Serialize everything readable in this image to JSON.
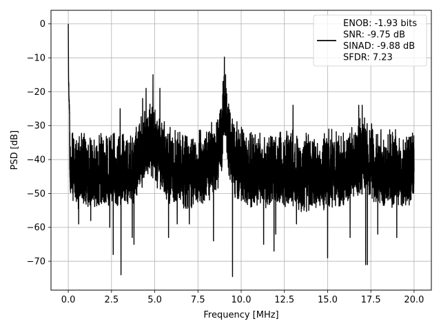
{
  "chart_data": {
    "type": "line",
    "title": "",
    "xlabel": "Frequency [MHz]",
    "ylabel": "PSD [dB]",
    "xlim": [
      -1.0,
      21.0
    ],
    "ylim": [
      -78.5,
      4.0
    ],
    "xticks": [
      0.0,
      2.5,
      5.0,
      7.5,
      10.0,
      12.5,
      15.0,
      17.5,
      20.0
    ],
    "xtick_labels": [
      "0.0",
      "2.5",
      "5.0",
      "7.5",
      "10.0",
      "12.5",
      "15.0",
      "17.5",
      "20.0"
    ],
    "yticks": [
      0,
      -10,
      -20,
      -30,
      -40,
      -50,
      -60,
      -70
    ],
    "ytick_labels": [
      "0",
      "−10",
      "−20",
      "−30",
      "−40",
      "−50",
      "−60",
      "−70"
    ],
    "grid": true,
    "legend": {
      "placement": "top-right",
      "entries": [
        "ENOB: -1.93 bits",
        "SNR: -9.75 dB",
        "SINAD: -9.88 dB",
        "SFDR: 7.23"
      ]
    },
    "series": [
      {
        "color": "#000000",
        "description_points": {
          "x": [
            0.0,
            0.02,
            0.05,
            0.1,
            0.3,
            0.6,
            1.0,
            2.0,
            3.0,
            3.8,
            4.3,
            4.6,
            4.9,
            5.2,
            6.0,
            7.0,
            8.0,
            8.6,
            8.9,
            9.03,
            9.2,
            9.6,
            10.5,
            11.5,
            12.5,
            14.0,
            15.0,
            16.0,
            16.8,
            17.2,
            17.5,
            18.0,
            19.0,
            20.0
          ],
          "y": [
            0.0,
            -15.0,
            -20.0,
            -30.0,
            -33.0,
            -33.0,
            -33.0,
            -33.0,
            -33.0,
            -31.0,
            -27.0,
            -25.0,
            -24.0,
            -28.0,
            -32.0,
            -33.0,
            -32.0,
            -28.0,
            -22.0,
            -10.0,
            -22.0,
            -30.0,
            -33.0,
            -33.0,
            -33.0,
            -34.0,
            -33.0,
            -33.0,
            -30.0,
            -28.0,
            -30.0,
            -33.0,
            -33.0,
            -33.0
          ]
        }
      }
    ],
    "minima_points": {
      "x": [
        0.6,
        1.3,
        2.4,
        2.6,
        3.05,
        3.7,
        3.8,
        5.8,
        6.3,
        7.0,
        8.4,
        9.5,
        11.3,
        11.9,
        12.0,
        13.2,
        15.0,
        16.3,
        17.2,
        17.3,
        17.9,
        19.0
      ],
      "y": [
        -59.0,
        -58.0,
        -60.0,
        -68.0,
        -74.0,
        -63.0,
        -65.0,
        -63.0,
        -59.0,
        -59.0,
        -64.0,
        -74.5,
        -65.0,
        -67.0,
        -62.0,
        -59.0,
        -69.0,
        -63.0,
        -71.0,
        -71.0,
        -62.0,
        -63.0
      ]
    },
    "maxima_points": {
      "x": [
        0.0,
        3.0,
        4.3,
        4.5,
        4.9,
        5.3,
        8.95,
        9.03,
        9.1,
        13.0,
        16.8,
        17.0
      ],
      "y": [
        0.0,
        -25.0,
        -22.0,
        -19.0,
        -15.0,
        -19.0,
        -17.0,
        -9.8,
        -15.0,
        -24.0,
        -24.0,
        -24.0
      ]
    }
  }
}
